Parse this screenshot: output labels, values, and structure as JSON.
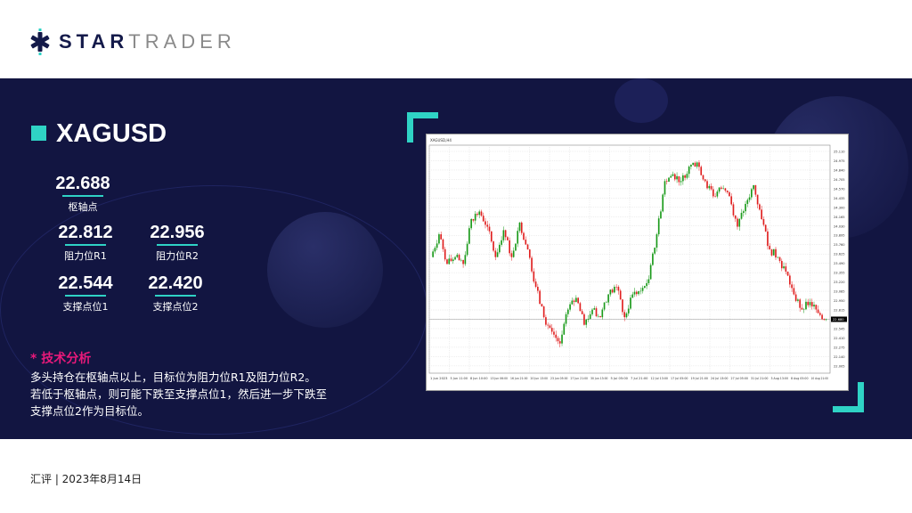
{
  "logo": {
    "bold": "STAR",
    "light": "TRADER"
  },
  "symbol": "XAGUSD",
  "levels": {
    "pivot": {
      "value": "22.688",
      "label": "枢轴点"
    },
    "r1": {
      "value": "22.812",
      "label": "阻力位R1"
    },
    "r2": {
      "value": "22.956",
      "label": "阻力位R2"
    },
    "s1": {
      "value": "22.544",
      "label": "支撑点位1"
    },
    "s2": {
      "value": "22.420",
      "label": "支撑点位2"
    }
  },
  "analysis": {
    "title": "* 技术分析",
    "lines": [
      "多头持仓在枢轴点以上，目标位为阻力位R1及阻力位R2。",
      "若低于枢轴点，则可能下跌至支撑点位1，然后进一步下跌至",
      "支撑点位2作为目标位。"
    ]
  },
  "footer": "汇评 | 2023年8月14日",
  "colors": {
    "navy": "#121541",
    "teal": "#2fd3c5",
    "pink": "#e8197a",
    "up": "#1a9a1a",
    "down": "#e02020"
  },
  "chart_data": {
    "type": "candlestick",
    "title": "XAGUSD,H4",
    "ylim": [
      21.9,
      25.2
    ],
    "grid": true,
    "x_tick_labels": [
      "1 Jun 2023",
      "5 Jun 11:00",
      "8 Jun 10:00",
      "13 Jun 06:00",
      "16 Jun 21:00",
      "20 Jun 13:00",
      "23 Jun 05:00",
      "27 Jun 21:00",
      "30 Jun 13:00",
      "5 Jul 05:00",
      "7 Jul 21:00",
      "12 Jul 13:00",
      "17 Jul 05:00",
      "19 Jul 21:00",
      "24 Jul 13:00",
      "27 Jul 05:00",
      "31 Jul 21:00",
      "3 Aug 13:00",
      "8 Aug 05:00",
      "10 Aug 21:00"
    ],
    "current_price": 22.68,
    "close": [
      23.58,
      23.91,
      23.48,
      23.58,
      23.48,
      24.13,
      24.24,
      24.02,
      23.58,
      23.97,
      23.58,
      24.08,
      23.69,
      23.15,
      22.71,
      22.5,
      22.33,
      22.82,
      22.99,
      22.6,
      22.82,
      22.71,
      23.04,
      23.15,
      22.71,
      23.04,
      23.09,
      23.26,
      23.91,
      24.68,
      24.78,
      24.68,
      24.89,
      24.95,
      24.68,
      24.46,
      24.57,
      24.46,
      24.02,
      24.35,
      24.62,
      24.13,
      23.69,
      23.58,
      23.37,
      23.04,
      22.82,
      22.93,
      22.77,
      22.68
    ]
  }
}
